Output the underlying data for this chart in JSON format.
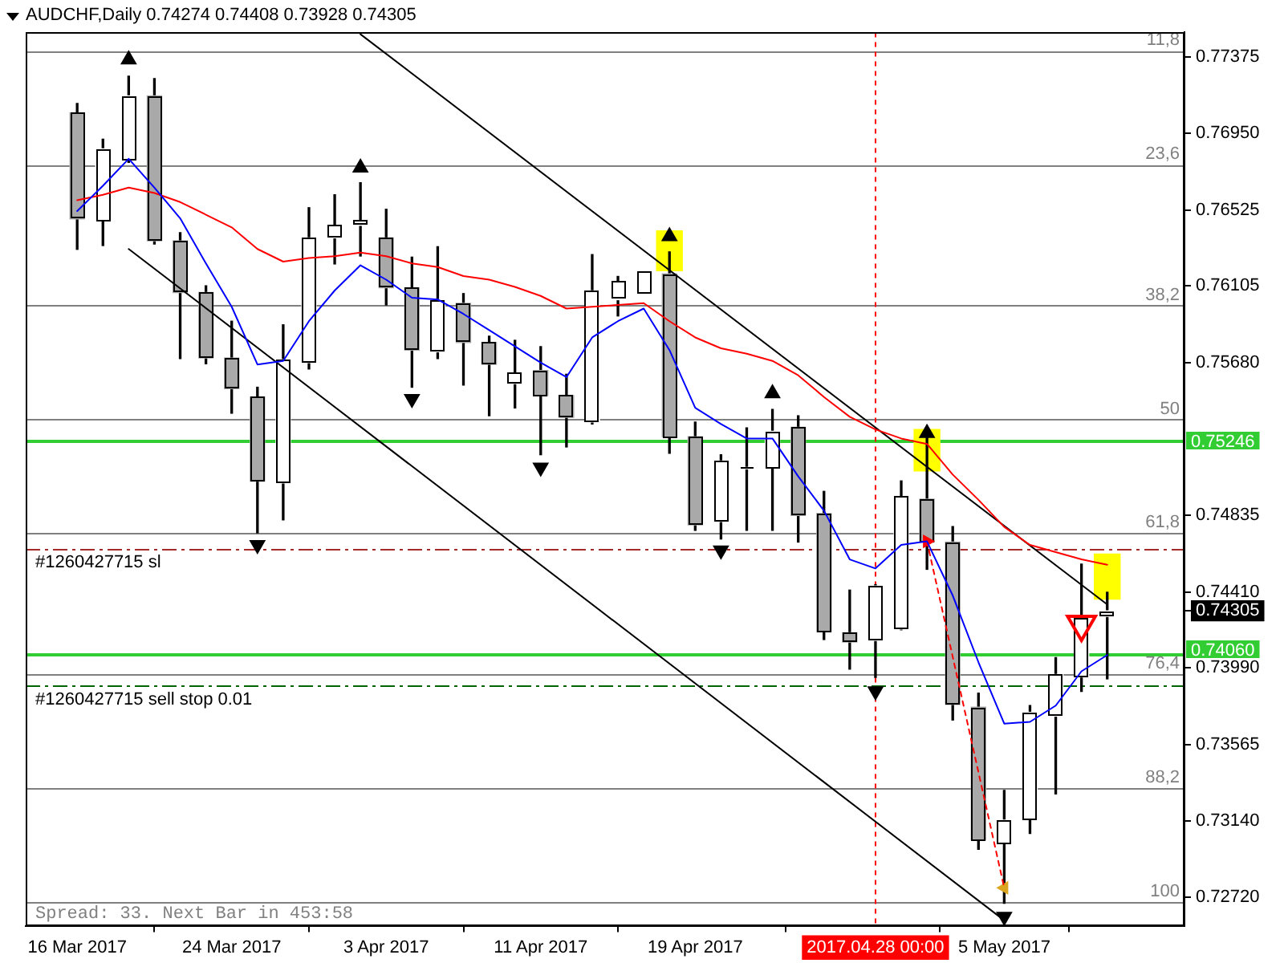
{
  "chart_data": {
    "type": "candlestick",
    "title": "AUDCHF,Daily 0.74274 0.74408 0.73928 0.74305",
    "categories": [
      "16 Mar 2017",
      null,
      null,
      null,
      null,
      null,
      "24 Mar 2017",
      null,
      null,
      null,
      null,
      null,
      "3 Apr 2017",
      null,
      null,
      null,
      null,
      null,
      "11 Apr 2017",
      null,
      null,
      null,
      null,
      null,
      "19 Apr 2017",
      null,
      null,
      null,
      null,
      null,
      null,
      "2017.04.28 00:00",
      null,
      null,
      null,
      null,
      "5 May 2017",
      null,
      null,
      null,
      null
    ],
    "ohlc": [
      [
        0.77064,
        0.77116,
        0.76308,
        0.76476
      ],
      [
        0.76467,
        0.76919,
        0.76329,
        0.76865
      ],
      [
        0.76807,
        0.77268,
        0.7679,
        0.77159
      ],
      [
        0.77159,
        0.77254,
        0.76337,
        0.76355
      ],
      [
        0.76355,
        0.764,
        0.75703,
        0.76069
      ],
      [
        0.76069,
        0.76106,
        0.75674,
        0.75706
      ],
      [
        0.75706,
        0.7591,
        0.754,
        0.75536
      ],
      [
        0.7549,
        0.75544,
        0.74737,
        0.75023
      ],
      [
        0.75014,
        0.7589,
        0.74809,
        0.75697
      ],
      [
        0.7568,
        0.76539,
        0.75645,
        0.76372
      ],
      [
        0.76372,
        0.76611,
        0.76227,
        0.76441
      ],
      [
        0.76441,
        0.76677,
        0.76271,
        0.76467
      ],
      [
        0.76372,
        0.7653,
        0.76,
        0.76095
      ],
      [
        0.76095,
        0.76265,
        0.75544,
        0.75749
      ],
      [
        0.75741,
        0.76323,
        0.75703,
        0.76029
      ],
      [
        0.76009,
        0.76063,
        0.75556,
        0.75792
      ],
      [
        0.75792,
        0.75827,
        0.75386,
        0.75671
      ],
      [
        0.75564,
        0.75804,
        0.75429,
        0.75622
      ],
      [
        0.75637,
        0.75769,
        0.7517,
        0.75498
      ],
      [
        0.75498,
        0.75616,
        0.75213,
        0.75377
      ],
      [
        0.75351,
        0.76279,
        0.7534,
        0.76078
      ],
      [
        0.76029,
        0.76158,
        0.75939,
        0.7613
      ],
      [
        0.76061,
        0.76184,
        0.76061,
        0.76184
      ],
      [
        0.76173,
        0.76294,
        0.75178,
        0.7527
      ],
      [
        0.7527,
        0.75351,
        0.74751,
        0.74781
      ],
      [
        0.748,
        0.7517,
        0.74703,
        0.75135
      ],
      [
        0.75092,
        0.75319,
        0.74751,
        0.751
      ],
      [
        0.75097,
        0.75421,
        0.74751,
        0.753
      ],
      [
        0.75322,
        0.75386,
        0.74686,
        0.74833
      ],
      [
        0.74844,
        0.74967,
        0.74146,
        0.74189
      ],
      [
        0.74184,
        0.7442,
        0.73982,
        0.74132
      ],
      [
        0.74141,
        0.7445,
        0.73936,
        0.74443
      ],
      [
        0.74204,
        0.75025,
        0.742,
        0.74939
      ],
      [
        0.74924,
        0.75313,
        0.74535,
        0.74686
      ],
      [
        0.74686,
        0.74772,
        0.737,
        0.73786
      ],
      [
        0.73771,
        0.73849,
        0.72984,
        0.73036
      ],
      [
        0.73016,
        0.7331,
        0.72684,
        0.73146
      ],
      [
        0.73151,
        0.7378,
        0.73071,
        0.73743
      ],
      [
        0.73722,
        0.74046,
        0.7329,
        0.73953
      ],
      [
        0.73938,
        0.74564,
        0.73858,
        0.7427
      ],
      [
        0.74274,
        0.74408,
        0.73928,
        0.74305
      ]
    ],
    "colors": [
      "#a9a9a9",
      "#ffffff",
      "#ffffff",
      "#a9a9a9",
      "#a9a9a9",
      "#a9a9a9",
      "#a9a9a9",
      "#a9a9a9",
      "#ffffff",
      "#ffffff",
      "#ffffff",
      "#ffffff",
      "#a9a9a9",
      "#a9a9a9",
      "#ffffff",
      "#a9a9a9",
      "#a9a9a9",
      "#ffffff",
      "#a9a9a9",
      "#a9a9a9",
      "#ffffff",
      "#ffffff",
      "#ffffff",
      "#a9a9a9",
      "#a9a9a9",
      "#ffffff",
      "#ffffff",
      "#ffffff",
      "#a9a9a9",
      "#a9a9a9",
      "#a9a9a9",
      "#ffffff",
      "#ffffff",
      "#a9a9a9",
      "#a9a9a9",
      "#a9a9a9",
      "#ffffff",
      "#ffffff",
      "#ffffff",
      "#ffffff",
      "#ffffff"
    ],
    "series": [
      {
        "type": "bar",
        "color": "#ffff00",
        "values": [
          null,
          null,
          null,
          null,
          null,
          null,
          null,
          null,
          null,
          null,
          null,
          null,
          null,
          null,
          null,
          null,
          null,
          null,
          null,
          null,
          null,
          null,
          null,
          0.0022,
          null,
          null,
          null,
          null,
          null,
          null,
          null,
          null,
          null,
          0.0023,
          null,
          null,
          null,
          null,
          null,
          null,
          0.0025
        ],
        "base": [
          null,
          null,
          null,
          null,
          null,
          null,
          null,
          null,
          null,
          null,
          null,
          null,
          null,
          null,
          null,
          null,
          null,
          null,
          null,
          null,
          null,
          null,
          null,
          0.7619,
          null,
          null,
          null,
          null,
          null,
          null,
          null,
          null,
          null,
          0.7508,
          null,
          null,
          null,
          null,
          null,
          null,
          0.7437
        ]
      },
      {
        "type": "line",
        "color": "#0000ff",
        "values": [
          0.7652,
          0.7666,
          0.7681,
          0.7665,
          0.7648,
          0.7623,
          0.7599,
          0.7567,
          0.7569,
          0.7591,
          0.7608,
          0.7622,
          0.7614,
          0.7604,
          0.7603,
          0.7595,
          0.7586,
          0.7577,
          0.7568,
          0.756,
          0.7582,
          0.7591,
          0.7598,
          0.7575,
          0.7543,
          0.7534,
          0.7526,
          0.7526,
          0.7505,
          0.7486,
          0.7459,
          0.7454,
          0.7467,
          0.7469,
          0.7439,
          0.7402,
          0.7368,
          0.7369,
          0.7378,
          0.7397,
          0.7406
        ]
      },
      {
        "type": "line",
        "color": "#ff0000",
        "values": [
          0.7658,
          0.7661,
          0.7665,
          0.7662,
          0.7657,
          0.765,
          0.7643,
          0.7631,
          0.7624,
          0.7626,
          0.7627,
          0.7629,
          0.7627,
          0.7623,
          0.7621,
          0.7616,
          0.7614,
          0.761,
          0.7605,
          0.7598,
          0.7599,
          0.76,
          0.7601,
          0.7591,
          0.7582,
          0.7576,
          0.7573,
          0.7569,
          0.7561,
          0.7549,
          0.7538,
          0.7531,
          0.7526,
          0.7523,
          0.7506,
          0.7492,
          0.7477,
          0.7467,
          0.7463,
          0.7459,
          0.7456
        ]
      },
      {
        "type": "line",
        "color": "#000000",
        "values": [
          null,
          null,
          0.7631,
          null,
          null,
          null,
          null,
          null,
          null,
          null,
          null,
          null,
          null,
          null,
          null,
          null,
          null,
          null,
          null,
          null,
          null,
          null,
          null,
          null,
          null,
          null,
          null,
          null,
          null,
          null,
          null,
          null,
          null,
          null,
          null,
          null,
          0.7259,
          null,
          null,
          null,
          null
        ]
      },
      {
        "type": "line",
        "color": "#000000",
        "values": [
          null,
          null,
          null,
          null,
          null,
          null,
          null,
          null,
          null,
          null,
          null,
          0.775,
          null,
          null,
          null,
          null,
          null,
          null,
          null,
          null,
          null,
          null,
          null,
          null,
          null,
          null,
          null,
          null,
          null,
          null,
          null,
          null,
          null,
          null,
          null,
          null,
          null,
          null,
          null,
          null,
          0.7434
        ]
      },
      {
        "type": "line",
        "color": "#ff0000",
        "line_style": "dotted",
        "values": [
          null,
          null,
          null,
          null,
          null,
          null,
          null,
          null,
          null,
          null,
          null,
          null,
          null,
          null,
          null,
          null,
          null,
          null,
          null,
          null,
          null,
          null,
          null,
          null,
          null,
          null,
          null,
          null,
          null,
          null,
          null,
          null,
          null,
          0.7469,
          null,
          null,
          0.7277,
          null,
          null,
          null,
          null
        ]
      },
      {
        "type": "scatter",
        "color": "#000000",
        "marker": "triangle",
        "values": [
          null,
          null,
          0.7736,
          null,
          null,
          null,
          null,
          null,
          null,
          null,
          null,
          0.7676,
          null,
          null,
          null,
          null,
          null,
          null,
          null,
          null,
          null,
          null,
          null,
          0.7638,
          null,
          null,
          null,
          0.7551,
          null,
          null,
          null,
          null,
          null,
          0.7529,
          null,
          null,
          null,
          null,
          null,
          null,
          null
        ]
      },
      {
        "type": "scatter",
        "color": "#000000",
        "marker": "triangle",
        "values": [
          null,
          null,
          null,
          null,
          null,
          null,
          null,
          0.7467,
          null,
          null,
          null,
          null,
          null,
          0.7548,
          null,
          null,
          null,
          null,
          0.751,
          null,
          null,
          null,
          null,
          null,
          null,
          0.7464,
          null,
          null,
          null,
          null,
          null,
          0.7386,
          null,
          null,
          null,
          null,
          0.7261,
          null,
          null,
          null,
          null
        ]
      },
      {
        "type": "scatter",
        "color": "#ff0000",
        "marker": "triangle",
        "values": [
          null,
          null,
          null,
          null,
          null,
          null,
          null,
          null,
          null,
          null,
          null,
          null,
          null,
          null,
          null,
          null,
          null,
          null,
          null,
          null,
          null,
          null,
          null,
          null,
          null,
          null,
          null,
          null,
          null,
          null,
          null,
          null,
          null,
          0.7469,
          null,
          null,
          null,
          null,
          null,
          null,
          null
        ]
      },
      {
        "type": "scatter",
        "color": "#daa520",
        "marker": "triangle",
        "values": [
          null,
          null,
          null,
          null,
          null,
          null,
          null,
          null,
          null,
          null,
          null,
          null,
          null,
          null,
          null,
          null,
          null,
          null,
          null,
          null,
          null,
          null,
          null,
          null,
          null,
          null,
          null,
          null,
          null,
          null,
          null,
          null,
          null,
          null,
          null,
          null,
          0.7277,
          null,
          null,
          null,
          null
        ]
      },
      {
        "type": "scatter",
        "color": "#ff0000",
        "marker": "triangle",
        "values": [
          null,
          null,
          null,
          null,
          null,
          null,
          null,
          null,
          null,
          null,
          null,
          null,
          null,
          null,
          null,
          null,
          null,
          null,
          null,
          null,
          null,
          null,
          null,
          null,
          null,
          null,
          null,
          null,
          null,
          null,
          null,
          null,
          null,
          null,
          null,
          null,
          null,
          null,
          null,
          0.7423,
          null
        ]
      }
    ],
    "ylim": [
      0.7256,
      0.7751
    ],
    "yticks": [
      {
        "value": 0.7272,
        "label": "0.72720"
      },
      {
        "value": 0.7314,
        "label": "0.73140"
      },
      0.73565,
      {
        "value": 0.7399,
        "label": "0.73990"
      },
      0.74305,
      {
        "value": 0.7441,
        "label": "0.74410"
      },
      0.74835,
      {
        "value": 0.7568,
        "label": "0.75680"
      },
      0.76105,
      0.76525,
      {
        "value": 0.7695,
        "label": "0.76950"
      },
      0.77375
    ],
    "y2lim": [
      102.5,
      9.9
    ],
    "ref_lines": [
      {
        "axis": "y2",
        "value": 11.8,
        "label": "11,8",
        "color": "#808080"
      },
      {
        "axis": "y2",
        "value": 23.6,
        "label": "23,6",
        "color": "#808080"
      },
      {
        "axis": "y2",
        "value": 38.2,
        "label": "38,2",
        "color": "#808080"
      },
      {
        "axis": "y2",
        "value": 50,
        "label": "50",
        "color": "#808080"
      },
      {
        "axis": "y2",
        "value": 61.8,
        "label": "61,8",
        "color": "#808080"
      },
      {
        "axis": "y2",
        "value": 76.4,
        "label": "76,4",
        "color": "#808080"
      },
      {
        "axis": "y2",
        "value": 88.2,
        "label": "88,2",
        "color": "#808080"
      },
      {
        "axis": "y2",
        "value": 100,
        "label": "100",
        "color": "#808080"
      },
      {
        "axis": "y",
        "value": 0.75246,
        "label": "0.75246",
        "color": "#32cd32"
      },
      {
        "axis": "y",
        "value": 0.7406,
        "label": "0.74060",
        "color": "#32cd32"
      },
      {
        "axis": "y",
        "value": 0.7465,
        "label": "#1260427715 sl",
        "color": "#a52a2a",
        "line_style": "dashed"
      },
      {
        "axis": "y",
        "value": 0.7389,
        "label": "#1260427715 sell stop 0.01",
        "color": "#006400",
        "line_style": "dashed"
      },
      {
        "axis": "x",
        "value": "2017.04.28 00:00",
        "color": "#ff0000",
        "line_style": "dotted"
      }
    ],
    "annotations": [
      "Spread: 33. Next Bar in 453:58"
    ]
  }
}
